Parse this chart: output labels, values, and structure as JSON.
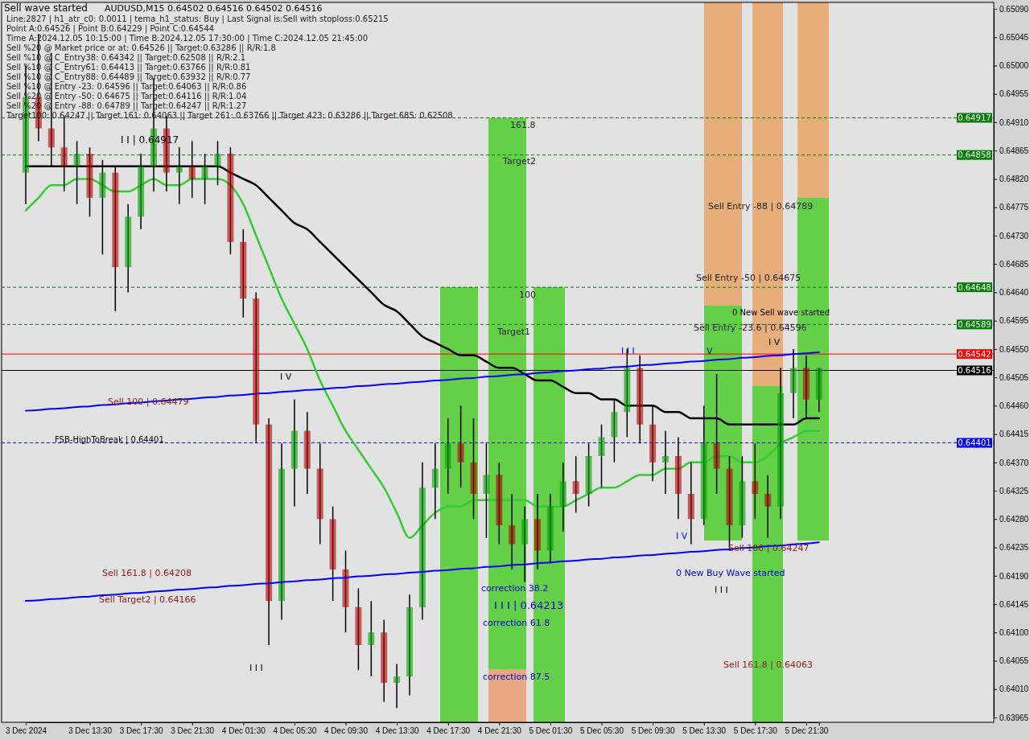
{
  "chart_data": {
    "type": "candlestick",
    "title": "AUDUSD,M15  0.64502 0.64516 0.64502 0.64516",
    "categories": [
      "3 Dec 2024",
      null,
      null,
      null,
      null,
      "3 Dec 13:30",
      null,
      null,
      null,
      "3 Dec 17:30",
      null,
      null,
      null,
      "3 Dec 21:30",
      null,
      null,
      null,
      "4 Dec 01:30",
      null,
      null,
      null,
      "4 Dec 05:30",
      null,
      null,
      null,
      "4 Dec 09:30",
      null,
      null,
      null,
      "4 Dec 13:30",
      null,
      null,
      null,
      "4 Dec 17:30",
      null,
      null,
      null,
      "4 Dec 21:30",
      null,
      null,
      null,
      "5 Dec 01:30",
      null,
      null,
      null,
      "5 Dec 05:30",
      null,
      null,
      null,
      "5 Dec 09:30",
      null,
      null,
      null,
      "5 Dec 13:30",
      null,
      null,
      null,
      "5 Dec 17:30",
      null,
      null,
      null,
      "5 Dec 21:30",
      null
    ],
    "ohlc": [
      [
        0.6483,
        0.65,
        0.6478,
        0.6495
      ],
      [
        0.6495,
        0.6505,
        0.6488,
        0.649
      ],
      [
        0.649,
        0.6502,
        0.6484,
        0.6487
      ],
      [
        0.6487,
        0.6492,
        0.648,
        0.6484
      ],
      [
        0.6484,
        0.6488,
        0.6478,
        0.6486
      ],
      [
        0.6486,
        0.6487,
        0.6476,
        0.6479
      ],
      [
        0.6479,
        0.6485,
        0.647,
        0.6483
      ],
      [
        0.6483,
        0.6484,
        0.6461,
        0.6468
      ],
      [
        0.6468,
        0.6478,
        0.6464,
        0.6476
      ],
      [
        0.6476,
        0.6486,
        0.6474,
        0.6484
      ],
      [
        0.6484,
        0.6498,
        0.648,
        0.649
      ],
      [
        0.649,
        0.6492,
        0.648,
        0.6483
      ],
      [
        0.6483,
        0.6487,
        0.6478,
        0.6484
      ],
      [
        0.6484,
        0.6488,
        0.6479,
        0.6482
      ],
      [
        0.6482,
        0.6486,
        0.6478,
        0.6484
      ],
      [
        0.6484,
        0.6488,
        0.6481,
        0.6486
      ],
      [
        0.6486,
        0.6487,
        0.647,
        0.6472
      ],
      [
        0.6472,
        0.6474,
        0.646,
        0.6463
      ],
      [
        0.6463,
        0.6464,
        0.644,
        0.6443
      ],
      [
        0.6443,
        0.6444,
        0.6408,
        0.6415
      ],
      [
        0.6415,
        0.644,
        0.6412,
        0.6436
      ],
      [
        0.6436,
        0.6447,
        0.643,
        0.6442
      ],
      [
        0.6442,
        0.6445,
        0.6432,
        0.6436
      ],
      [
        0.6436,
        0.644,
        0.6424,
        0.6428
      ],
      [
        0.6428,
        0.643,
        0.6415,
        0.642
      ],
      [
        0.642,
        0.6423,
        0.641,
        0.6414
      ],
      [
        0.6414,
        0.6417,
        0.6404,
        0.6408
      ],
      [
        0.6408,
        0.6415,
        0.6403,
        0.641
      ],
      [
        0.641,
        0.6412,
        0.6399,
        0.6402
      ],
      [
        0.6402,
        0.6405,
        0.6398,
        0.6403
      ],
      [
        0.6403,
        0.6416,
        0.64,
        0.6414
      ],
      [
        0.6414,
        0.6437,
        0.6412,
        0.6433
      ],
      [
        0.6433,
        0.644,
        0.6428,
        0.6436
      ],
      [
        0.6436,
        0.6444,
        0.6432,
        0.644
      ],
      [
        0.644,
        0.6446,
        0.6433,
        0.6437
      ],
      [
        0.6437,
        0.6444,
        0.6428,
        0.6432
      ],
      [
        0.6432,
        0.644,
        0.6425,
        0.6435
      ],
      [
        0.6435,
        0.6437,
        0.6424,
        0.6427
      ],
      [
        0.6427,
        0.6432,
        0.642,
        0.6424
      ],
      [
        0.6424,
        0.643,
        0.6418,
        0.6428
      ],
      [
        0.6428,
        0.6432,
        0.642,
        0.6423
      ],
      [
        0.6423,
        0.6432,
        0.6421,
        0.643
      ],
      [
        0.643,
        0.6437,
        0.6426,
        0.6434
      ],
      [
        0.6434,
        0.6438,
        0.6429,
        0.6432
      ],
      [
        0.6432,
        0.644,
        0.643,
        0.6438
      ],
      [
        0.6438,
        0.6443,
        0.6433,
        0.6441
      ],
      [
        0.6441,
        0.6447,
        0.6437,
        0.6445
      ],
      [
        0.6445,
        0.6455,
        0.6441,
        0.6452
      ],
      [
        0.6452,
        0.6454,
        0.644,
        0.6443
      ],
      [
        0.6443,
        0.6446,
        0.6434,
        0.6437
      ],
      [
        0.6437,
        0.6442,
        0.6432,
        0.6438
      ],
      [
        0.6438,
        0.6441,
        0.6428,
        0.6432
      ],
      [
        0.6432,
        0.6437,
        0.6424,
        0.6428
      ],
      [
        0.6428,
        0.6446,
        0.6427,
        0.644
      ],
      [
        0.644,
        0.6451,
        0.6432,
        0.6436
      ],
      [
        0.6436,
        0.6438,
        0.6423,
        0.6427
      ],
      [
        0.6427,
        0.6438,
        0.6425,
        0.6434
      ],
      [
        0.6434,
        0.644,
        0.6428,
        0.6432
      ],
      [
        0.6432,
        0.6435,
        0.6425,
        0.643
      ],
      [
        0.643,
        0.6452,
        0.6428,
        0.6448
      ],
      [
        0.6448,
        0.6455,
        0.6444,
        0.6452
      ],
      [
        0.6452,
        0.6454,
        0.6444,
        0.6447
      ],
      [
        0.6447,
        0.6452,
        0.6445,
        0.6452
      ]
    ],
    "series": [
      {
        "type": "line",
        "color": "#000000",
        "values": [
          0.6484,
          0.6484,
          0.6484,
          0.6484,
          0.6484,
          0.6484,
          0.6484,
          0.6484,
          0.6484,
          0.6484,
          0.6484,
          0.6484,
          0.6484,
          0.6484,
          0.6484,
          0.6484,
          0.6483,
          0.6482,
          0.6481,
          0.6479,
          0.6477,
          0.6475,
          0.6474,
          0.6472,
          0.647,
          0.6468,
          0.6466,
          0.6464,
          0.6462,
          0.6461,
          0.6459,
          0.6457,
          0.6456,
          0.6455,
          0.6454,
          0.6454,
          0.6453,
          0.6452,
          0.6452,
          0.6451,
          0.645,
          0.645,
          0.6449,
          0.6448,
          0.6448,
          0.6447,
          0.6447,
          0.6446,
          0.6446,
          0.6446,
          0.6445,
          0.6445,
          0.6444,
          0.6444,
          0.6444,
          0.6443,
          0.6443,
          0.6443,
          0.6443,
          0.6443,
          0.6443,
          0.6444,
          0.6444
        ]
      },
      {
        "type": "line",
        "color": "#33cc33",
        "values": [
          0.6477,
          0.6479,
          0.6481,
          0.6481,
          0.6482,
          0.6482,
          0.6481,
          0.648,
          0.648,
          0.6481,
          0.6482,
          0.6481,
          0.6481,
          0.6482,
          0.6482,
          0.6482,
          0.6481,
          0.6478,
          0.6473,
          0.6468,
          0.6463,
          0.6459,
          0.6455,
          0.645,
          0.6446,
          0.6442,
          0.6439,
          0.6436,
          0.6433,
          0.6429,
          0.6425,
          0.6427,
          0.6429,
          0.643,
          0.643,
          0.6431,
          0.6431,
          0.6431,
          0.6431,
          0.6431,
          0.643,
          0.643,
          0.643,
          0.6431,
          0.6432,
          0.6433,
          0.6433,
          0.6434,
          0.6435,
          0.6435,
          0.6436,
          0.6436,
          0.6437,
          0.6437,
          0.6438,
          0.6438,
          0.6437,
          0.6437,
          0.6438,
          0.644,
          0.6441,
          0.6442,
          0.6442
        ]
      },
      {
        "type": "line",
        "color": "#0000ff",
        "values": [
          0.64452,
          0.64453,
          0.64455,
          0.64456,
          0.64458,
          0.64459,
          0.64461,
          0.64462,
          0.64464,
          0.64465,
          0.64467,
          0.64468,
          0.6447,
          0.64471,
          0.64473,
          0.64474,
          0.64476,
          0.64477,
          0.64479,
          0.6448,
          0.64482,
          0.64483,
          0.64485,
          0.64486,
          0.64488,
          0.64489,
          0.64491,
          0.64492,
          0.64494,
          0.64495,
          0.64497,
          0.64498,
          0.645,
          0.64501,
          0.64503,
          0.64504,
          0.64506,
          0.64507,
          0.64509,
          0.6451,
          0.64512,
          0.64513,
          0.64515,
          0.64516,
          0.64518,
          0.64519,
          0.64521,
          0.64522,
          0.64524,
          0.64525,
          0.64527,
          0.64528,
          0.6453,
          0.64531,
          0.64533,
          0.64534,
          0.64536,
          0.64537,
          0.64539,
          0.6454,
          0.64542,
          0.64543,
          0.64545
        ]
      },
      {
        "type": "line",
        "color": "#0000ff",
        "values": [
          0.6415,
          0.64151,
          0.64153,
          0.64154,
          0.64156,
          0.64157,
          0.64159,
          0.6416,
          0.64162,
          0.64163,
          0.64165,
          0.64166,
          0.64168,
          0.64169,
          0.64171,
          0.64172,
          0.64174,
          0.64175,
          0.64177,
          0.64178,
          0.6418,
          0.64181,
          0.64183,
          0.64184,
          0.64186,
          0.64187,
          0.64189,
          0.6419,
          0.64192,
          0.64193,
          0.64195,
          0.64196,
          0.64198,
          0.64199,
          0.64201,
          0.64202,
          0.64204,
          0.64205,
          0.64207,
          0.64208,
          0.6421,
          0.64211,
          0.64213,
          0.64214,
          0.64216,
          0.64217,
          0.64219,
          0.6422,
          0.64222,
          0.64223,
          0.64225,
          0.64226,
          0.64228,
          0.64229,
          0.64231,
          0.64232,
          0.64234,
          0.64235,
          0.64237,
          0.64238,
          0.6424,
          0.64241,
          0.64243
        ]
      }
    ],
    "ylim": [
      0.63965,
      0.6509
    ],
    "yticks": [
      0.63965,
      {
        "value": 0.6401,
        "label": "0.64010"
      },
      0.64055,
      {
        "value": 0.641,
        "label": "0.64100"
      },
      0.64145,
      {
        "value": 0.6419,
        "label": "0.64190"
      },
      0.64235,
      {
        "value": 0.6428,
        "label": "0.64280"
      },
      0.64325,
      {
        "value": 0.6437,
        "label": "0.64370"
      },
      0.64415,
      {
        "value": 0.6446,
        "label": "0.64460"
      },
      0.64505,
      {
        "value": 0.6455,
        "label": "0.64550"
      },
      0.64595,
      {
        "value": 0.6464,
        "label": "0.64640"
      },
      0.64685,
      {
        "value": 0.6473,
        "label": "0.64730"
      },
      0.64775,
      {
        "value": 0.6482,
        "label": "0.64820"
      },
      0.64865,
      {
        "value": 0.6491,
        "label": "0.64910"
      },
      0.64955,
      {
        "value": 0.65,
        "label": "0.65000"
      },
      0.65045,
      {
        "value": 0.6509,
        "label": "0.65090"
      }
    ],
    "ref_lines": [
      {
        "axis": "y",
        "value": 0.64917,
        "label": "0.64917",
        "color": "#008000",
        "line_style": "dashed"
      },
      {
        "axis": "y",
        "value": 0.64858,
        "label": "0.64858",
        "color": "#008000",
        "line_style": "dashed"
      },
      {
        "axis": "y",
        "value": 0.64648,
        "label": "0.64648",
        "color": "#008000",
        "line_style": "dashed"
      },
      {
        "axis": "y",
        "value": 0.64589,
        "label": "0.64589",
        "color": "#008000",
        "line_style": "dashed"
      },
      {
        "axis": "y",
        "value": 0.64542,
        "label": "0.64542",
        "color": "#ff0000",
        "line_style": "solid"
      },
      {
        "axis": "y",
        "value": 0.64516,
        "label": "0.64516",
        "color": "#000000",
        "line_style": "solid"
      },
      {
        "axis": "y",
        "value": 0.64401,
        "label": "0.64401",
        "color": "#0000ff",
        "line_style": "dashed"
      }
    ],
    "annotations": [
      "Sell wave started",
      "Line:2827 | h1_atr_c0: 0.0011 | tema_h1_status: Buy | Last Signal is:Sell with stoploss:0.65215",
      "Point A:0.64526 | Point B:0.64229 | Point C:0.64544",
      "Time A:2024.12.05 10:15:00 | Time B:2024.12.05 17:30:00 | Time C:2024.12.05 21:45:00",
      "Sell %20 @ Market price or at: 0.64526 || Target:0.63286 || R/R:1.8",
      "Sell %10 @ C_Entry38: 0.64342 || Target:0.62508 || R/R:2.1",
      "Sell %10 @ C_Entry61: 0.64413 || Target:0.63766 || R/R:0.81",
      "Sell %10 @ C_Entry88: 0.64489 || Target:0.63932 || R/R:0.77",
      "Sell %10 @ Entry -23: 0.64596 || Target:0.64063 || R/R:0.86",
      "Sell %20 @ Entry -50: 0.64675 || Target:0.64116 || R/R:1.04",
      "Sell %20 @ Entry -88: 0.64789 || Target:0.64247 || R/R:1.27",
      "Target100: 0.64247 || Target 161: 0.64063 || Target 261: 0.63766 || Target 423: 0.63286 || Target 685: 0.62508",
      "I I | 0.64917",
      "161.8",
      "Target2",
      "100",
      "Target1",
      "Sell Entry -88 | 0.64789",
      "Sell Entry -50 | 0.64675",
      "Sell Entry -23.6 | 0.64596",
      "0 New Sell wave started",
      "I I I",
      "V",
      "I V",
      "I V",
      "Sell 100 | 0.64479",
      "FSB-HighToBreak | 0.64401",
      "correction 38.2",
      "Sell 100 | 0.64247",
      "0 New Buy Wave started",
      "I V",
      "Sell 161.8 | 0.64208",
      "I I I | 0.64213",
      "Sell Target2 | 0.64166",
      "correction 61.8",
      "I I I",
      "I I I",
      "Sell 161.8 | 0.64063",
      "correction 87.5"
    ]
  }
}
